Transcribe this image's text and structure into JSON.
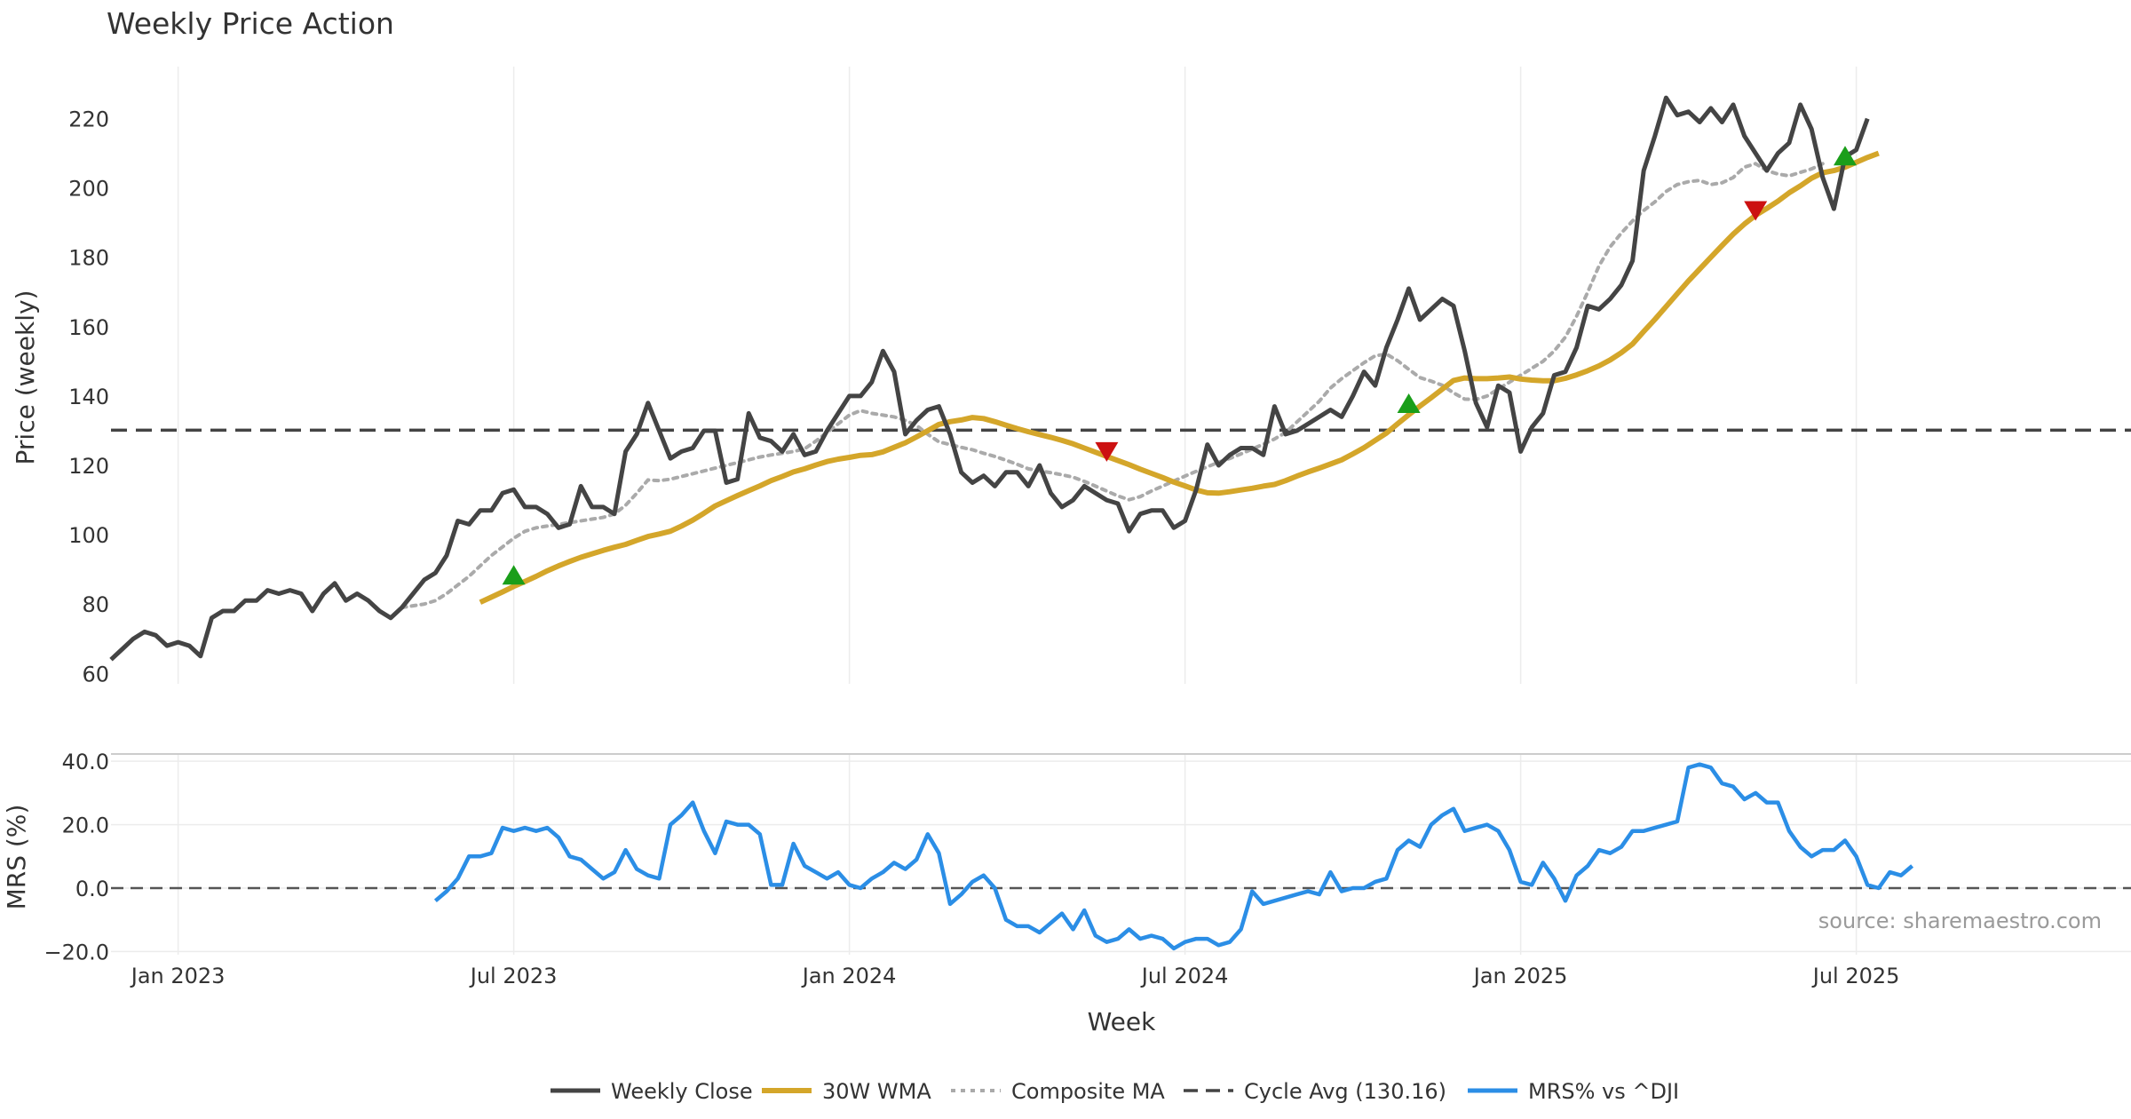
{
  "chart_data": {
    "type": "line",
    "title": "Weekly Price Action",
    "xlabel": "Week",
    "colors": {
      "close": "#444444",
      "wma": "#d4a62a",
      "composite": "#aaaaaa",
      "cycle": "#444444",
      "mrs": "#2b8ee6",
      "buy": "#1a9e1a",
      "sell": "#cc1111",
      "grid": "#ececec"
    },
    "x_tick_labels": [
      "Jan 2023",
      "Jul 2023",
      "Jan 2024",
      "Jul 2024",
      "Jan 2025",
      "Jul 2025"
    ],
    "x_tick_weeks": [
      6,
      36,
      66,
      96,
      126,
      156
    ],
    "price_panel": {
      "ylabel": "Price (weekly)",
      "ylim": [
        57,
        235
      ],
      "yticks": [
        60,
        80,
        100,
        120,
        140,
        160,
        180,
        200,
        220
      ],
      "series": [
        {
          "name": "Weekly Close",
          "start_week": 0,
          "values": [
            64,
            67,
            70,
            72,
            71,
            68,
            69,
            68,
            65,
            76,
            78,
            78,
            81,
            81,
            84,
            83,
            84,
            83,
            78,
            83,
            86,
            81,
            83,
            81,
            78,
            76,
            79,
            83,
            87,
            89,
            94,
            104,
            103,
            107,
            107,
            112,
            113,
            108,
            108,
            106,
            102,
            103,
            114,
            108,
            108,
            106,
            124,
            129,
            138,
            130,
            122,
            124,
            125,
            130,
            130,
            115,
            116,
            135,
            128,
            127,
            124,
            129,
            123,
            124,
            130,
            135,
            140,
            140,
            144,
            153,
            147,
            129,
            133,
            136,
            137,
            129,
            118,
            115,
            117,
            114,
            118,
            118,
            114,
            120,
            112,
            108,
            110,
            114,
            112,
            110,
            109,
            101,
            106,
            107,
            107,
            102,
            104,
            113,
            126,
            120,
            123,
            125,
            125,
            123,
            137,
            129,
            130,
            132,
            134,
            136,
            134,
            140,
            147,
            143,
            154,
            162,
            171,
            162,
            165,
            168,
            166,
            153,
            138,
            131,
            143,
            141,
            124,
            131,
            135,
            146,
            147,
            154,
            166,
            165,
            168,
            172,
            179,
            205,
            215,
            226,
            221,
            222,
            219,
            223,
            219,
            224,
            215,
            210,
            205,
            210,
            213,
            224,
            217,
            203,
            194,
            209,
            211,
            220
          ]
        },
        {
          "name": "30W WMA",
          "start_week": 33,
          "values": [
            80.5,
            82,
            83.5,
            85.1,
            86.5,
            88,
            89.6,
            91,
            92.3,
            93.5,
            94.5,
            95.5,
            96.4,
            97.2,
            98.4,
            99.5,
            100.2,
            101,
            102.5,
            104.2,
            106.2,
            108.3,
            109.8,
            111.3,
            112.7,
            114.1,
            115.6,
            116.8,
            118.1,
            119,
            120.1,
            121.1,
            121.8,
            122.3,
            122.9,
            123.1,
            123.9,
            125.2,
            126.5,
            128.2,
            130,
            131.8,
            132.6,
            133.1,
            133.8,
            133.5,
            132.6,
            131.6,
            130.6,
            129.7,
            128.9,
            128.1,
            127.2,
            126.2,
            125,
            123.8,
            122.6,
            121.4,
            120.2,
            118.9,
            117.7,
            116.5,
            115.2,
            114.1,
            112.9,
            112.1,
            112,
            112.4,
            112.9,
            113.4,
            114,
            114.5,
            115.6,
            116.9,
            118.1,
            119.2,
            120.4,
            121.6,
            123.3,
            125.1,
            127.2,
            129.3,
            132,
            134.6,
            137.1,
            139.5,
            142,
            144.5,
            145.2,
            145,
            145,
            145.2,
            145.5,
            144.9,
            144.6,
            144.4,
            144.4,
            145.1,
            146.1,
            147.3,
            148.7,
            150.4,
            152.5,
            155,
            158.6,
            162.1,
            165.8,
            169.5,
            173.2,
            176.6,
            180,
            183.4,
            186.7,
            189.6,
            192.1,
            194.1,
            196.2,
            198.6,
            200.6,
            202.8,
            204.4,
            205,
            206,
            207.4,
            208.8,
            210
          ]
        },
        {
          "name": "Composite MA",
          "start_week": 26,
          "values": [
            79,
            79.5,
            80,
            81,
            83,
            85.5,
            88,
            91,
            94,
            96.5,
            99,
            101,
            102,
            102.5,
            103,
            103.5,
            104,
            104.5,
            105,
            106,
            108.5,
            112,
            115.8,
            115.6,
            116,
            116.8,
            117.6,
            118.4,
            119.2,
            120,
            120.8,
            121.6,
            122.4,
            123,
            123.5,
            124,
            124.8,
            127,
            129.5,
            132,
            134.5,
            135.8,
            135,
            134.5,
            134,
            133,
            131.5,
            129,
            126.8,
            126,
            125.2,
            124.5,
            123.5,
            122.6,
            121.5,
            120.3,
            119,
            118.4,
            117.9,
            117.3,
            116.6,
            115.4,
            114,
            112.6,
            111.2,
            110.1,
            111,
            112.6,
            114,
            115.5,
            116.9,
            118.3,
            119.6,
            120.9,
            122,
            123.3,
            124.7,
            126.1,
            127.6,
            129.5,
            132.5,
            135.5,
            138.5,
            142.3,
            145,
            147.3,
            149.6,
            151.6,
            152.1,
            150.2,
            147.7,
            145.3,
            144.3,
            143.1,
            140.9,
            139.1,
            139,
            140,
            142,
            144,
            146,
            148,
            150,
            153,
            157,
            163,
            170,
            177.5,
            183,
            187,
            190.5,
            193.5,
            196,
            199,
            201,
            201.8,
            202.2,
            201,
            201.5,
            203,
            206,
            207,
            205,
            204,
            203.5,
            204.5,
            205.5,
            207
          ]
        }
      ],
      "cycle_avg": 130.16,
      "signals": [
        {
          "week": 36,
          "type": "buy"
        },
        {
          "week": 89,
          "type": "sell"
        },
        {
          "week": 116,
          "type": "buy"
        },
        {
          "week": 147,
          "type": "sell"
        },
        {
          "week": 155,
          "type": "buy"
        }
      ]
    },
    "mrs_panel": {
      "ylabel": "MRS (%)",
      "ylim": [
        -21,
        42
      ],
      "yticks": [
        40,
        20,
        0,
        -20
      ],
      "ytick_labels": [
        "40.0",
        "20.0",
        "0.0",
        "−20.0"
      ],
      "series": [
        {
          "name": "MRS% vs ^DJI",
          "start_week": 29,
          "values": [
            -4,
            -1,
            3,
            10,
            10,
            11,
            19,
            18,
            19,
            18,
            19,
            16,
            10,
            9,
            6,
            3,
            5,
            12,
            6,
            4,
            3,
            20,
            23,
            27,
            18,
            11,
            21,
            20,
            20,
            17,
            1,
            1,
            14,
            7,
            5,
            3,
            5,
            1,
            0,
            3,
            5,
            8,
            6,
            9,
            17,
            11,
            -5,
            -2,
            2,
            4,
            0,
            -10,
            -12,
            -12,
            -14,
            -11,
            -8,
            -13,
            -7,
            -15,
            -17,
            -16,
            -13,
            -16,
            -15,
            -16,
            -19,
            -17,
            -16,
            -16,
            -18,
            -17,
            -13,
            -1,
            -5,
            -4,
            -3,
            -2,
            -1,
            -2,
            5,
            -1,
            0,
            0,
            2,
            3,
            12,
            15,
            13,
            20,
            23,
            25,
            18,
            19,
            20,
            18,
            12,
            2,
            1,
            8,
            3,
            -4,
            4,
            7,
            12,
            11,
            13,
            18,
            18,
            19,
            20,
            21,
            38,
            39,
            38,
            33,
            32,
            28,
            30,
            27,
            27,
            18,
            13,
            10,
            12,
            12,
            15,
            10,
            1,
            0,
            5,
            4,
            7
          ]
        }
      ],
      "source": "source: sharemaestro.com"
    },
    "legend": [
      "Weekly Close",
      "30W WMA",
      "Composite MA",
      "Cycle Avg (130.16)",
      "MRS% vs ^DJI"
    ]
  }
}
